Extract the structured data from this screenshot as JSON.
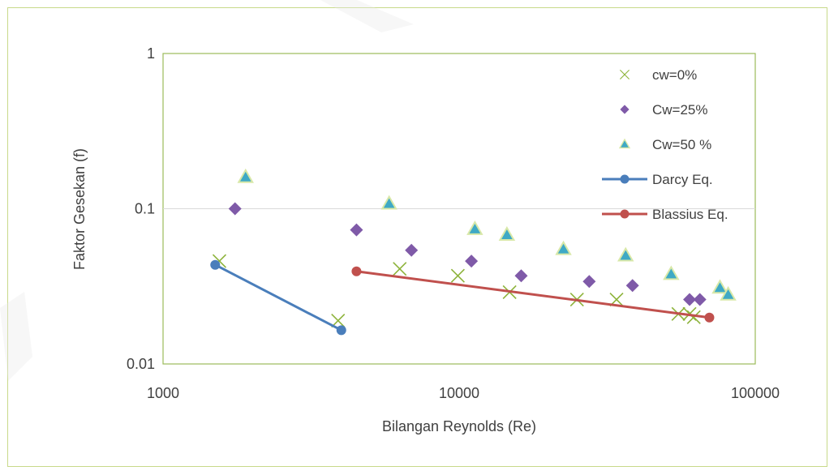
{
  "chart_data": {
    "type": "scatter",
    "xlabel": "Bilangan Reynolds (Re)",
    "ylabel": "Faktor Gesekan (f)",
    "xscale": "log",
    "yscale": "log",
    "xlim": [
      1000,
      100000
    ],
    "ylim": [
      0.01,
      1
    ],
    "x_ticks": [
      1000,
      10000,
      100000
    ],
    "x_tick_labels": [
      "1000",
      "10000",
      "100000"
    ],
    "y_ticks": [
      0.01,
      0.1,
      1
    ],
    "y_tick_labels": [
      "0.01",
      "0.1",
      "1"
    ],
    "grid": "horizontal",
    "legend_position": "right",
    "series": [
      {
        "name": "cw=0%",
        "marker": "x",
        "color": "#8db33a",
        "points": [
          [
            1550,
            0.046
          ],
          [
            3900,
            0.019
          ],
          [
            6300,
            0.041
          ],
          [
            9900,
            0.037
          ],
          [
            14800,
            0.029
          ],
          [
            25000,
            0.026
          ],
          [
            34000,
            0.026
          ],
          [
            55000,
            0.021
          ],
          [
            60000,
            0.021
          ],
          [
            62000,
            0.02
          ]
        ]
      },
      {
        "name": "Cw=25%",
        "marker": "diamond",
        "color": "#7f5aa8",
        "points": [
          [
            1750,
            0.1
          ],
          [
            4500,
            0.073
          ],
          [
            6900,
            0.054
          ],
          [
            11000,
            0.046
          ],
          [
            16200,
            0.037
          ],
          [
            27500,
            0.034
          ],
          [
            38500,
            0.032
          ],
          [
            60000,
            0.026
          ],
          [
            65000,
            0.026
          ]
        ]
      },
      {
        "name": "Cw=50 %",
        "marker": "triangle",
        "color": "#3fa9c5",
        "points": [
          [
            1900,
            0.16
          ],
          [
            5800,
            0.108
          ],
          [
            11300,
            0.074
          ],
          [
            14500,
            0.068
          ],
          [
            22500,
            0.055
          ],
          [
            36500,
            0.05
          ],
          [
            52000,
            0.038
          ],
          [
            76000,
            0.031
          ],
          [
            81000,
            0.028
          ]
        ]
      },
      {
        "name": "Darcy Eq.",
        "marker": "line-circle",
        "color": "#4a7ebb",
        "points": [
          [
            1500,
            0.0435
          ],
          [
            4000,
            0.0165
          ]
        ]
      },
      {
        "name": "Blassius  Eq.",
        "marker": "line-circle",
        "color": "#c0504d",
        "points": [
          [
            4500,
            0.0395
          ],
          [
            70000,
            0.0199
          ]
        ]
      }
    ]
  }
}
